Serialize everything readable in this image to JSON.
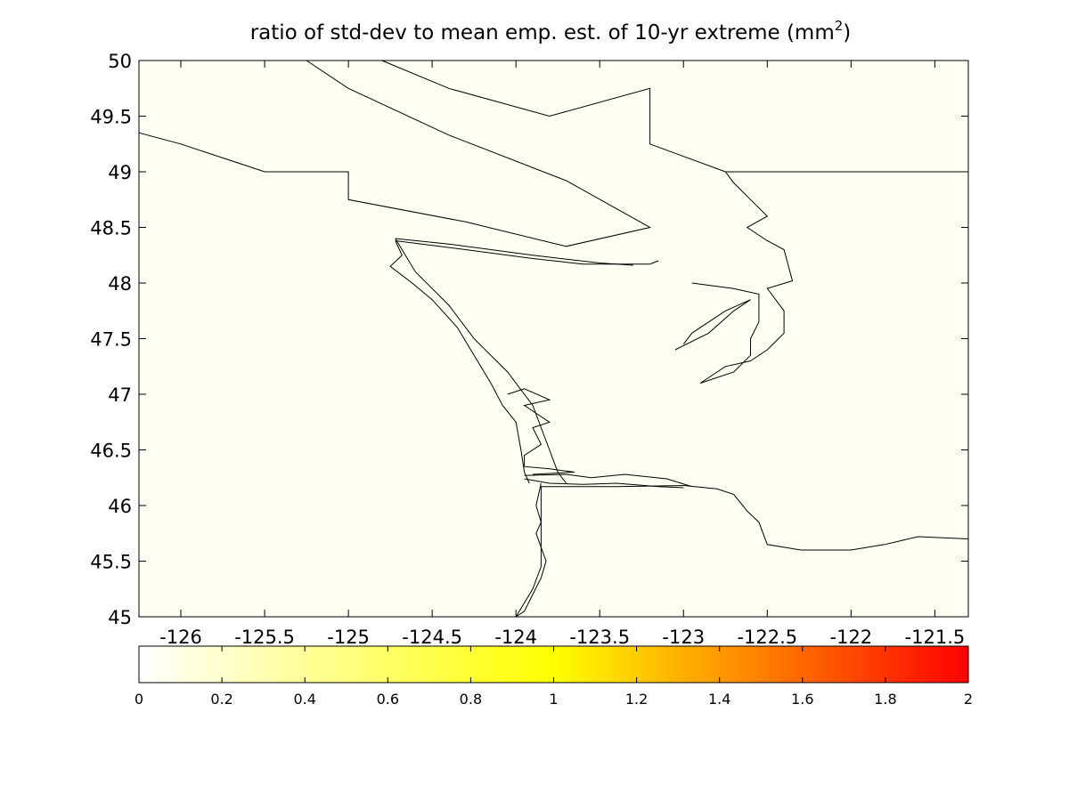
{
  "title": {
    "main": "ratio of std-dev to mean emp. est. of 10-yr extreme (mm",
    "sup": "2",
    "close": ")"
  },
  "map": {
    "lon_range": [
      -126.25,
      -121.3
    ],
    "lat_range": [
      45,
      50
    ],
    "background_color": "#fffff3",
    "line_color": "#000000",
    "x_ticks": [
      "-126",
      "-125.5",
      "-125",
      "-124.5",
      "-124",
      "-123.5",
      "-123",
      "-122.5",
      "-122",
      "-121.5"
    ],
    "x_tick_values": [
      -126,
      -125.5,
      -125,
      -124.5,
      -124,
      -123.5,
      -123,
      -122.5,
      -122,
      -121.5
    ],
    "y_ticks": [
      "45",
      "45.5",
      "46",
      "46.5",
      "47",
      "47.5",
      "48",
      "48.5",
      "49",
      "49.5",
      "50"
    ],
    "y_tick_values": [
      45,
      45.5,
      46,
      46.5,
      47,
      47.5,
      48,
      48.5,
      49,
      49.5,
      50
    ]
  },
  "colorbar": {
    "range": [
      0,
      2
    ],
    "colormap": "hot (reversed)",
    "stops": [
      "#ffffff",
      "#ffff80",
      "#ffff00",
      "#ff8000",
      "#ff0000"
    ],
    "ticks": [
      "0",
      "0.2",
      "0.4",
      "0.6",
      "0.8",
      "1",
      "1.2",
      "1.4",
      "1.6",
      "1.8",
      "2"
    ],
    "tick_values": [
      0,
      0.2,
      0.4,
      0.6,
      0.8,
      1,
      1.2,
      1.4,
      1.6,
      1.8,
      2
    ]
  },
  "coastlines": [
    {
      "name": "vancouver-island-north-shore",
      "points": [
        [
          -126.25,
          49.35
        ],
        [
          -126.0,
          49.25
        ],
        [
          -125.5,
          49.0
        ],
        [
          -125.0,
          49.0
        ],
        [
          -125.0,
          48.75
        ],
        [
          -124.3,
          48.55
        ],
        [
          -123.7,
          48.33
        ],
        [
          -123.2,
          48.5
        ],
        [
          -123.7,
          48.92
        ],
        [
          -124.4,
          49.33
        ],
        [
          -125.0,
          49.75
        ],
        [
          -125.25,
          50.0
        ]
      ]
    },
    {
      "name": "mainland-bc-coast",
      "points": [
        [
          -124.8,
          50.0
        ],
        [
          -124.4,
          49.75
        ],
        [
          -123.8,
          49.5
        ],
        [
          -123.2,
          49.75
        ],
        [
          -123.2,
          49.25
        ],
        [
          -122.75,
          49.0
        ]
      ]
    },
    {
      "name": "canada-us-border",
      "points": [
        [
          -122.75,
          49.0
        ],
        [
          -121.3,
          49.0
        ]
      ]
    },
    {
      "name": "strait-of-juan-de-fuca-south",
      "points": [
        [
          -124.72,
          48.38
        ],
        [
          -124.3,
          48.3
        ],
        [
          -123.9,
          48.22
        ],
        [
          -123.6,
          48.17
        ],
        [
          -123.2,
          48.17
        ],
        [
          -123.15,
          48.2
        ]
      ]
    },
    {
      "name": "strait-of-juan-de-fuca-north",
      "points": [
        [
          -124.72,
          48.4
        ],
        [
          -124.4,
          48.35
        ],
        [
          -123.9,
          48.25
        ],
        [
          -123.5,
          48.18
        ],
        [
          -123.3,
          48.16
        ]
      ]
    },
    {
      "name": "olympic-peninsula-coast",
      "points": [
        [
          -124.72,
          48.38
        ],
        [
          -124.68,
          48.25
        ],
        [
          -124.75,
          48.15
        ],
        [
          -124.62,
          48.0
        ],
        [
          -124.5,
          47.85
        ],
        [
          -124.35,
          47.6
        ],
        [
          -124.25,
          47.35
        ],
        [
          -124.15,
          47.1
        ],
        [
          -124.08,
          46.9
        ],
        [
          -124.0,
          46.75
        ],
        [
          -123.97,
          46.5
        ],
        [
          -123.95,
          46.3
        ],
        [
          -123.92,
          46.2
        ]
      ]
    },
    {
      "name": "olympic-peninsula-inner",
      "points": [
        [
          -124.72,
          48.4
        ],
        [
          -124.6,
          48.1
        ],
        [
          -124.4,
          47.8
        ],
        [
          -124.25,
          47.5
        ],
        [
          -124.05,
          47.2
        ],
        [
          -123.9,
          46.9
        ],
        [
          -123.85,
          46.7
        ],
        [
          -123.8,
          46.5
        ],
        [
          -123.75,
          46.3
        ],
        [
          -123.7,
          46.2
        ]
      ]
    },
    {
      "name": "grays-harbor",
      "points": [
        [
          -124.05,
          47.0
        ],
        [
          -123.95,
          47.05
        ],
        [
          -123.8,
          46.95
        ],
        [
          -123.95,
          46.9
        ],
        [
          -123.8,
          46.75
        ],
        [
          -123.9,
          46.7
        ],
        [
          -123.85,
          46.55
        ],
        [
          -123.95,
          46.45
        ],
        [
          -123.95,
          46.35
        ],
        [
          -123.8,
          46.33
        ],
        [
          -123.65,
          46.3
        ],
        [
          -123.9,
          46.28
        ]
      ]
    },
    {
      "name": "columbia-river-north",
      "points": [
        [
          -123.95,
          46.27
        ],
        [
          -123.7,
          46.28
        ],
        [
          -123.55,
          46.25
        ],
        [
          -123.35,
          46.28
        ],
        [
          -123.1,
          46.24
        ],
        [
          -122.95,
          46.17
        ]
      ]
    },
    {
      "name": "columbia-river-south",
      "points": [
        [
          -123.95,
          46.24
        ],
        [
          -123.8,
          46.2
        ],
        [
          -123.6,
          46.19
        ],
        [
          -123.4,
          46.2
        ],
        [
          -123.15,
          46.17
        ],
        [
          -123.0,
          46.16
        ]
      ]
    },
    {
      "name": "oregon-coast",
      "points": [
        [
          -123.85,
          46.2
        ],
        [
          -123.88,
          46.0
        ],
        [
          -123.85,
          45.85
        ],
        [
          -123.88,
          45.75
        ],
        [
          -123.82,
          45.5
        ],
        [
          -123.85,
          45.35
        ],
        [
          -123.9,
          45.2
        ],
        [
          -123.95,
          45.05
        ],
        [
          -124.0,
          45.0
        ]
      ]
    },
    {
      "name": "oregon-coast-inner",
      "points": [
        [
          -123.85,
          46.17
        ],
        [
          -123.85,
          45.8
        ],
        [
          -123.85,
          45.55
        ],
        [
          -123.85,
          45.45
        ],
        [
          -123.9,
          45.25
        ],
        [
          -124.0,
          45.0
        ]
      ]
    },
    {
      "name": "columbia-river-east",
      "points": [
        [
          -123.85,
          46.17
        ],
        [
          -123.4,
          46.17
        ],
        [
          -123.0,
          46.18
        ],
        [
          -122.8,
          46.15
        ],
        [
          -122.7,
          46.1
        ],
        [
          -122.62,
          45.95
        ],
        [
          -122.55,
          45.85
        ],
        [
          -122.5,
          45.65
        ],
        [
          -122.3,
          45.6
        ],
        [
          -122.0,
          45.6
        ],
        [
          -121.8,
          45.65
        ],
        [
          -121.6,
          45.72
        ],
        [
          -121.3,
          45.7
        ]
      ]
    },
    {
      "name": "puget-sound",
      "points": [
        [
          -122.75,
          49.0
        ],
        [
          -122.7,
          48.9
        ],
        [
          -122.6,
          48.75
        ],
        [
          -122.5,
          48.6
        ],
        [
          -122.62,
          48.5
        ],
        [
          -122.5,
          48.38
        ],
        [
          -122.4,
          48.3
        ],
        [
          -122.35,
          48.02
        ],
        [
          -122.5,
          47.95
        ],
        [
          -122.4,
          47.75
        ],
        [
          -122.4,
          47.55
        ],
        [
          -122.5,
          47.4
        ],
        [
          -122.6,
          47.3
        ],
        [
          -122.75,
          47.25
        ],
        [
          -122.9,
          47.1
        ],
        [
          -122.7,
          47.2
        ],
        [
          -122.6,
          47.35
        ],
        [
          -122.6,
          47.5
        ],
        [
          -122.55,
          47.65
        ],
        [
          -122.55,
          47.9
        ],
        [
          -122.7,
          47.95
        ],
        [
          -122.95,
          48.0
        ]
      ]
    },
    {
      "name": "hood-canal",
      "points": [
        [
          -123.05,
          47.4
        ],
        [
          -122.85,
          47.55
        ],
        [
          -122.7,
          47.75
        ],
        [
          -122.6,
          47.85
        ],
        [
          -122.75,
          47.75
        ],
        [
          -122.95,
          47.55
        ],
        [
          -123.0,
          47.45
        ]
      ]
    }
  ]
}
